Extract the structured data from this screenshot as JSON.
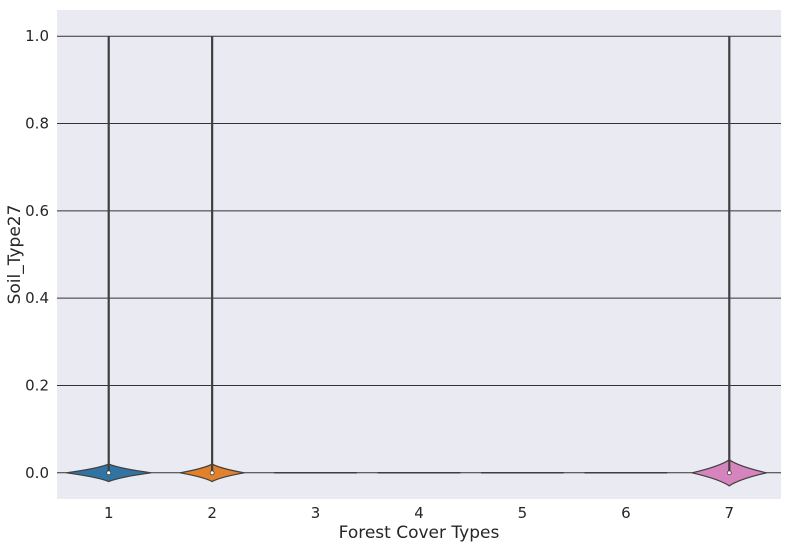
{
  "chart_data": {
    "type": "violin",
    "xlabel": "Forest Cover Types",
    "ylabel": "Soil_Type27",
    "categories": [
      "1",
      "2",
      "3",
      "4",
      "5",
      "6",
      "7"
    ],
    "y_ticks": [
      "0.0",
      "0.2",
      "0.4",
      "0.6",
      "0.8",
      "1.0"
    ],
    "ylim": [
      -0.06,
      1.06
    ],
    "grid": "horizontal",
    "background_color": "#eaeaf2",
    "grid_color": "#333333",
    "series": [
      {
        "category": "1",
        "min": 0.0,
        "max": 1.0,
        "median": 0.0,
        "width": 0.82,
        "body_height": 0.02,
        "color": "#3274a1"
      },
      {
        "category": "2",
        "min": 0.0,
        "max": 1.0,
        "median": 0.0,
        "width": 0.62,
        "body_height": 0.02,
        "color": "#e1812c"
      },
      {
        "category": "3",
        "min": 0.0,
        "max": 0.0,
        "median": 0.0,
        "width": 0.8,
        "body_height": 0.0,
        "color": "#3a923a"
      },
      {
        "category": "4",
        "min": 0.0,
        "max": 0.0,
        "median": 0.0,
        "width": 0.8,
        "body_height": 0.0,
        "color": "#c03d3e"
      },
      {
        "category": "5",
        "min": 0.0,
        "max": 0.0,
        "median": 0.0,
        "width": 0.8,
        "body_height": 0.0,
        "color": "#9372b2"
      },
      {
        "category": "6",
        "min": 0.0,
        "max": 0.0,
        "median": 0.0,
        "width": 0.8,
        "body_height": 0.0,
        "color": "#845b53"
      },
      {
        "category": "7",
        "min": 0.0,
        "max": 1.0,
        "median": 0.0,
        "width": 0.72,
        "body_height": 0.03,
        "color": "#d684bd"
      }
    ]
  }
}
